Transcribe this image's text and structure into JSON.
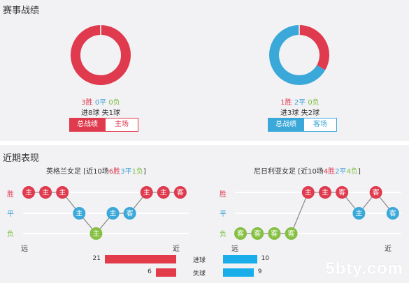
{
  "record": {
    "title": "赛事战绩",
    "left": {
      "win": "3胜",
      "draw": "0平",
      "loss": "0负",
      "goals_for": "进8球",
      "goals_against": "失1球",
      "donut": {
        "win": 3,
        "draw": 0,
        "loss": 0
      },
      "tab_total": "总战绩",
      "tab_venue": "主场"
    },
    "right": {
      "win": "1胜",
      "draw": "2平",
      "loss": "0负",
      "goals_for": "进3球",
      "goals_against": "失2球",
      "donut": {
        "win": 1,
        "draw": 2,
        "loss": 0
      },
      "tab_total": "总战绩",
      "tab_venue": "客场"
    }
  },
  "recent": {
    "title": "近期表现",
    "axis": {
      "win": "胜",
      "draw": "平",
      "loss": "负",
      "far": "远",
      "near": "近"
    },
    "left": {
      "team": "英格兰女足",
      "summary_prefix": " [近10场",
      "wins": "6胜",
      "draws": "3平",
      "losses": "1负",
      "summary_suffix": "]",
      "matches": [
        {
          "result": "win",
          "venue": "主"
        },
        {
          "result": "win",
          "venue": "主"
        },
        {
          "result": "win",
          "venue": "主"
        },
        {
          "result": "draw",
          "venue": "主"
        },
        {
          "result": "loss",
          "venue": "主"
        },
        {
          "result": "draw",
          "venue": "主"
        },
        {
          "result": "draw",
          "venue": "客"
        },
        {
          "result": "win",
          "venue": "主"
        },
        {
          "result": "win",
          "venue": "主"
        },
        {
          "result": "win",
          "venue": "客"
        }
      ]
    },
    "right": {
      "team": "尼日利亚女足",
      "summary_prefix": " [近10场",
      "wins": "4胜",
      "draws": "2平",
      "losses": "4负",
      "summary_suffix": "]",
      "matches": [
        {
          "result": "loss",
          "venue": "客"
        },
        {
          "result": "loss",
          "venue": "客"
        },
        {
          "result": "loss",
          "venue": "客"
        },
        {
          "result": "loss",
          "venue": "客"
        },
        {
          "result": "win",
          "venue": "主"
        },
        {
          "result": "win",
          "venue": "主"
        },
        {
          "result": "win",
          "venue": "客"
        },
        {
          "result": "draw",
          "venue": "主"
        },
        {
          "result": "win",
          "venue": "客"
        },
        {
          "result": "draw",
          "venue": "客"
        }
      ]
    },
    "goals": {
      "scored_label": "进球",
      "conceded_label": "失球",
      "left_scored": 21,
      "left_conceded": 6,
      "right_scored": 10,
      "right_conceded": 9
    }
  },
  "colors": {
    "win": "#df3a4e",
    "draw": "#3aa8d8",
    "loss": "#86c043",
    "home_bar": "#e23b4a",
    "away_bar": "#19aeea"
  },
  "watermark": "5bty.com"
}
